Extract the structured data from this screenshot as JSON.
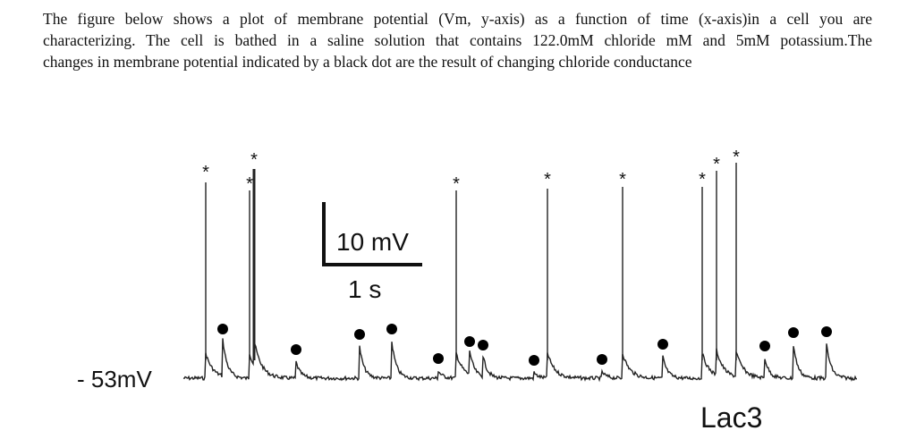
{
  "question": {
    "lines": [
      "The figure below shows a plot of membrane potential (Vm, y-axis) as a function of time (x-axis)in a cell you are",
      "characterizing. The cell is bathed in a saline solution that contains 122.0mM chloride mM and 5mM potassium.The",
      "changes in membrane potential indicated by a black dot are the result of changing chloride conductance"
    ]
  },
  "figure": {
    "baseline_label": "- 53mV",
    "scale_bar_voltage": "10 mV",
    "scale_bar_time": "1 s",
    "cell_label": "Lac3",
    "spike_marker": "*",
    "spike_count": 9,
    "dot_event_count": 13,
    "trace_color": "#222222"
  }
}
